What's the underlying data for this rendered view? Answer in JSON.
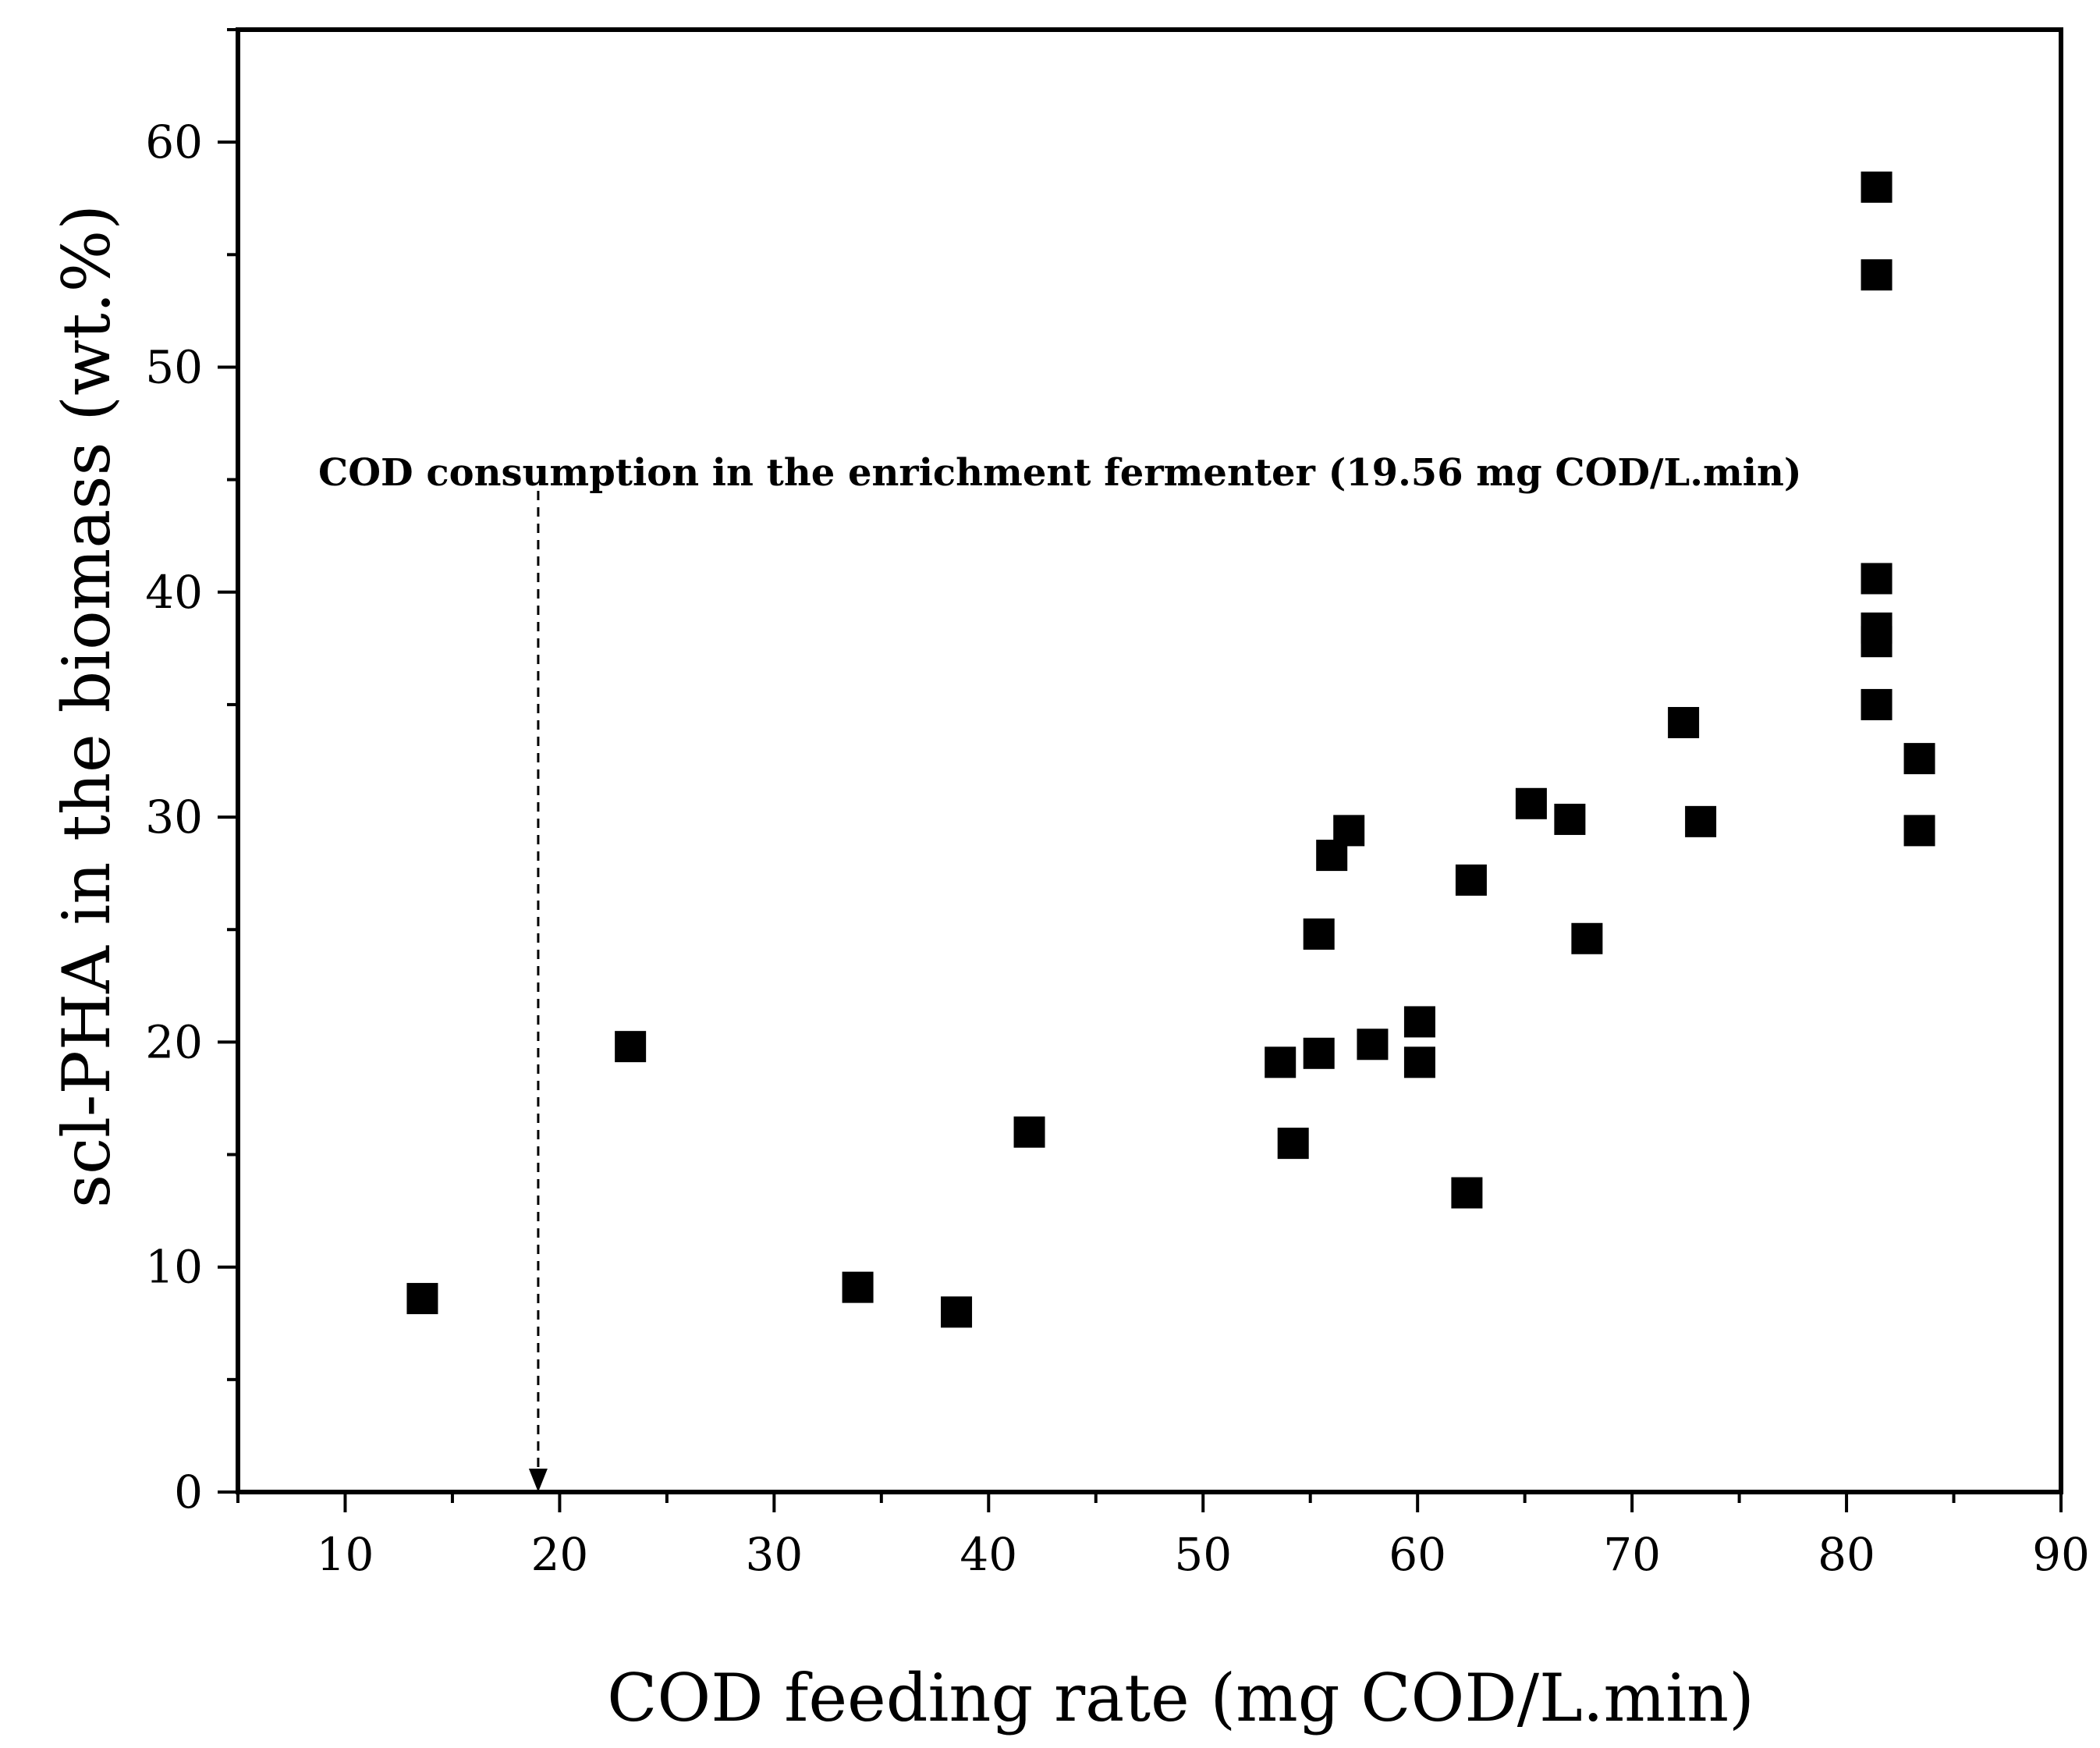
{
  "chart_data": {
    "type": "scatter",
    "title": "",
    "xlabel": "COD feeding rate (mg COD/L.min)",
    "ylabel": "scl-PHA in the biomass (wt.%)",
    "xlim": [
      5,
      90
    ],
    "ylim": [
      0,
      65
    ],
    "x_ticks": [
      10,
      20,
      30,
      40,
      50,
      60,
      70,
      80,
      90
    ],
    "y_ticks": [
      0,
      10,
      20,
      30,
      40,
      50,
      60
    ],
    "x_minor_step": 5,
    "y_minor_step": 5,
    "marker": "filled-square",
    "marker_color": "#000000",
    "series": [
      {
        "name": "scl-PHA",
        "points": [
          {
            "x": 13.6,
            "y": 8.6
          },
          {
            "x": 23.3,
            "y": 19.8
          },
          {
            "x": 33.9,
            "y": 9.1
          },
          {
            "x": 38.5,
            "y": 8.0
          },
          {
            "x": 41.9,
            "y": 16.0
          },
          {
            "x": 53.6,
            "y": 19.1
          },
          {
            "x": 54.2,
            "y": 15.5
          },
          {
            "x": 55.4,
            "y": 24.8
          },
          {
            "x": 55.4,
            "y": 19.5
          },
          {
            "x": 56.0,
            "y": 28.3
          },
          {
            "x": 56.8,
            "y": 29.4
          },
          {
            "x": 57.9,
            "y": 19.9
          },
          {
            "x": 60.1,
            "y": 20.9
          },
          {
            "x": 60.1,
            "y": 19.1
          },
          {
            "x": 62.3,
            "y": 13.3
          },
          {
            "x": 62.5,
            "y": 27.2
          },
          {
            "x": 65.3,
            "y": 30.6
          },
          {
            "x": 67.1,
            "y": 29.9
          },
          {
            "x": 67.9,
            "y": 24.6
          },
          {
            "x": 72.4,
            "y": 34.2
          },
          {
            "x": 73.2,
            "y": 29.8
          },
          {
            "x": 81.4,
            "y": 58.0
          },
          {
            "x": 81.4,
            "y": 54.1
          },
          {
            "x": 81.4,
            "y": 40.6
          },
          {
            "x": 81.4,
            "y": 38.4
          },
          {
            "x": 81.4,
            "y": 37.8
          },
          {
            "x": 81.4,
            "y": 35.0
          },
          {
            "x": 83.4,
            "y": 32.6
          },
          {
            "x": 83.4,
            "y": 29.4
          }
        ]
      }
    ],
    "annotation": {
      "text": "COD consumption in the enrichment fermenter (19.56 mg COD/L.min)",
      "x": 19.0,
      "line_top_y": 44.5,
      "style": "dashed-arrow-down"
    },
    "grid": false,
    "legend": "none"
  }
}
